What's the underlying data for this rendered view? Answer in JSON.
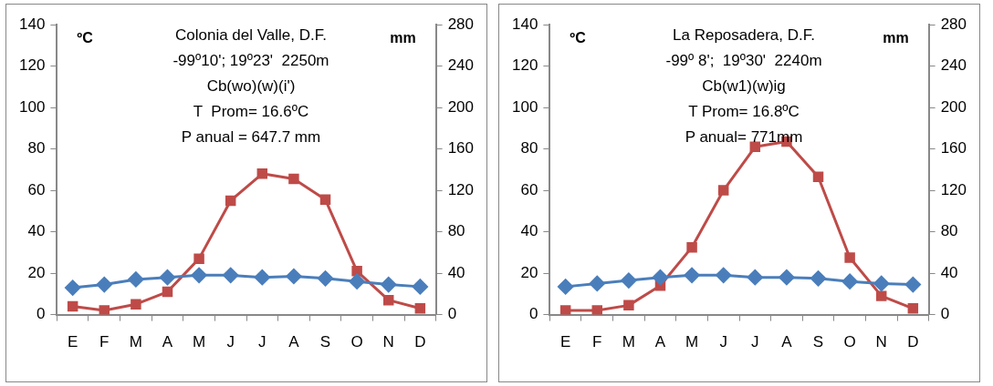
{
  "chart_data": [
    {
      "type": "line",
      "title": "Colonia del Valle, D.F.",
      "subtitle": "-99º10'; 19º23'  2250m",
      "annotations": [
        "Cb(wo)(w)(i')",
        "T  Prom= 16.6ºC",
        "P anual = 647.7 mm"
      ],
      "ylabel": "ºC",
      "y2label": "mm",
      "categories": [
        "E",
        "F",
        "M",
        "A",
        "M",
        "J",
        "J",
        "A",
        "S",
        "O",
        "N",
        "D"
      ],
      "series": [
        {
          "color": "#4a7ebb",
          "marker": "diamond",
          "values": [
            13,
            14.5,
            17,
            18,
            19,
            19,
            18,
            18.5,
            17.5,
            16,
            14.5,
            13.5
          ]
        },
        {
          "color": "#be4b48",
          "marker": "square",
          "axis": "y2",
          "values": [
            8,
            4,
            10,
            22,
            54,
            110,
            136,
            131,
            111,
            42,
            14,
            6
          ]
        }
      ],
      "ylim": [
        0,
        140
      ],
      "yticks": [
        0,
        20,
        40,
        60,
        80,
        100,
        120,
        140
      ],
      "y2lim": [
        0,
        280
      ],
      "y2ticks": [
        0,
        40,
        80,
        120,
        160,
        200,
        240,
        280
      ],
      "grid": false,
      "legend": false
    },
    {
      "type": "line",
      "title": "La Reposadera, D.F.",
      "subtitle": "-99º 8';  19º30'  2240m",
      "annotations": [
        "Cb(w1)(w)ig",
        "T Prom= 16.8ºC",
        "P anual= 771mm"
      ],
      "ylabel": "ºC",
      "y2label": "mm",
      "categories": [
        "E",
        "F",
        "M",
        "A",
        "M",
        "J",
        "J",
        "A",
        "S",
        "O",
        "N",
        "D"
      ],
      "series": [
        {
          "color": "#4a7ebb",
          "marker": "diamond",
          "values": [
            13.5,
            15,
            16.5,
            18,
            19,
            19,
            18,
            18,
            17.5,
            16,
            15,
            14.5
          ]
        },
        {
          "color": "#be4b48",
          "marker": "square",
          "axis": "y2",
          "values": [
            4,
            4,
            9,
            28,
            65,
            120,
            162,
            167,
            133,
            55,
            18,
            6
          ]
        }
      ],
      "ylim": [
        0,
        140
      ],
      "yticks": [
        0,
        20,
        40,
        60,
        80,
        100,
        120,
        140
      ],
      "y2lim": [
        0,
        280
      ],
      "y2ticks": [
        0,
        40,
        80,
        120,
        160,
        200,
        240,
        280
      ],
      "grid": false,
      "legend": false
    }
  ]
}
